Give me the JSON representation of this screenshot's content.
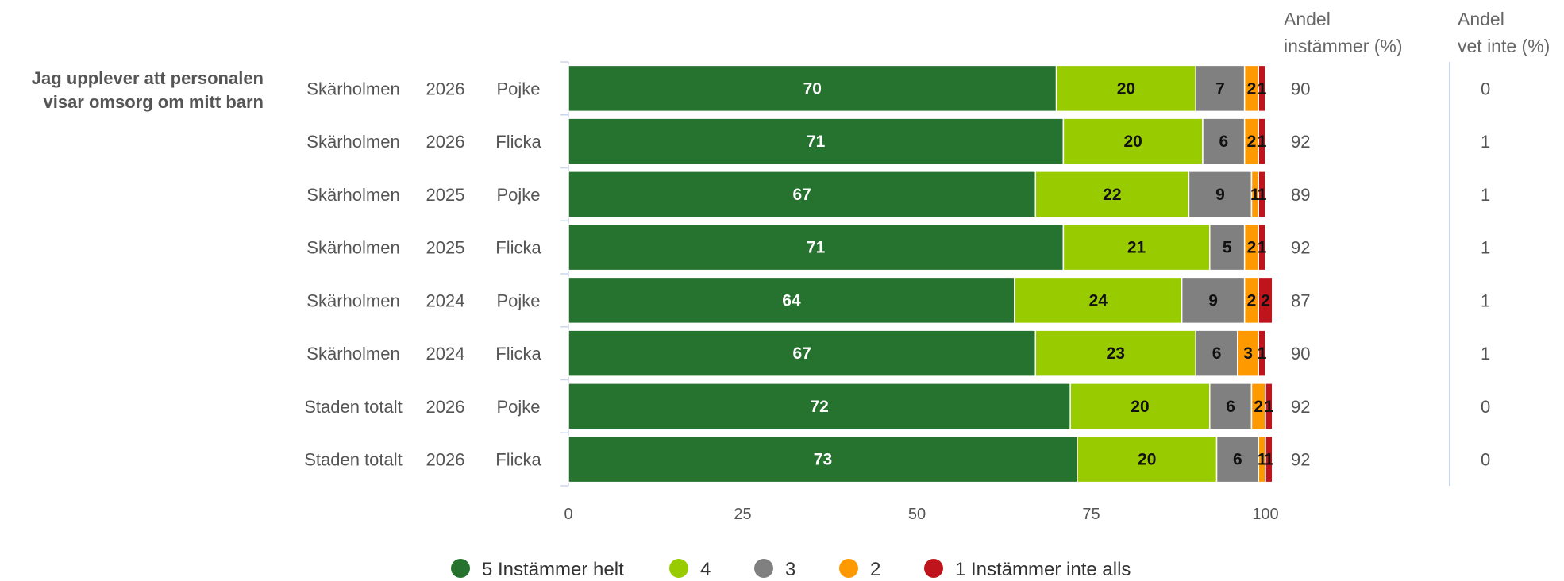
{
  "chart_data": {
    "type": "bar",
    "orientation": "horizontal",
    "stacked": true,
    "question": [
      "Jag upplever att personalen",
      "visar omsorg om mitt barn"
    ],
    "headers": {
      "andel_instammer": [
        "Andel",
        "instämmer (%)"
      ],
      "andel_vet_inte": [
        "Andel",
        "vet inte (%)"
      ]
    },
    "categories": [
      {
        "unit": "Skärholmen",
        "year": "2026",
        "gender": "Pojke"
      },
      {
        "unit": "Skärholmen",
        "year": "2026",
        "gender": "Flicka"
      },
      {
        "unit": "Skärholmen",
        "year": "2025",
        "gender": "Pojke"
      },
      {
        "unit": "Skärholmen",
        "year": "2025",
        "gender": "Flicka"
      },
      {
        "unit": "Skärholmen",
        "year": "2024",
        "gender": "Pojke"
      },
      {
        "unit": "Skärholmen",
        "year": "2024",
        "gender": "Flicka"
      },
      {
        "unit": "Staden totalt",
        "year": "2026",
        "gender": "Pojke"
      },
      {
        "unit": "Staden totalt",
        "year": "2026",
        "gender": "Flicka"
      }
    ],
    "series": [
      {
        "name": "5 Instämmer helt",
        "color": "#267330",
        "label_color": "#ffffff",
        "values": [
          70,
          71,
          67,
          71,
          64,
          67,
          72,
          73
        ]
      },
      {
        "name": "4",
        "color": "#99cc00",
        "label_color": "#111111",
        "values": [
          20,
          20,
          22,
          21,
          24,
          23,
          20,
          20
        ]
      },
      {
        "name": "3",
        "color": "#808080",
        "label_color": "#111111",
        "values": [
          7,
          6,
          9,
          5,
          9,
          6,
          6,
          6
        ]
      },
      {
        "name": "2",
        "color": "#ff9900",
        "label_color": "#111111",
        "values": [
          2,
          2,
          1,
          2,
          2,
          3,
          2,
          1
        ]
      },
      {
        "name": "1 Instämmer inte alls",
        "color": "#c0141c",
        "label_color": "#111111",
        "values": [
          1,
          1,
          1,
          1,
          2,
          1,
          1,
          1
        ]
      }
    ],
    "andel_instammer": [
      90,
      92,
      89,
      92,
      87,
      90,
      92,
      92
    ],
    "andel_vet_inte": [
      0,
      1,
      1,
      1,
      1,
      1,
      0,
      0
    ],
    "xlim": [
      0,
      100
    ],
    "xticks": [
      0,
      25,
      50,
      75,
      100
    ],
    "grid": false,
    "legend_position": "bottom"
  }
}
